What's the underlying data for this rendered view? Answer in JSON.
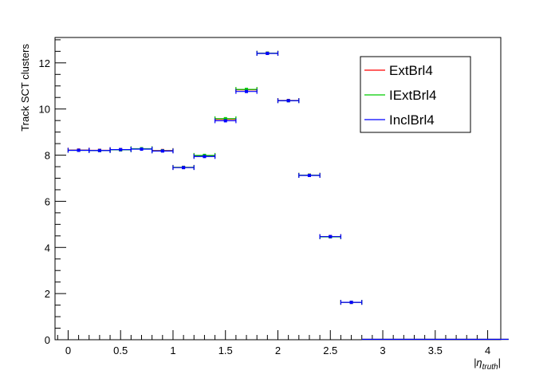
{
  "chart_data": {
    "type": "scatter",
    "title": "",
    "xlabel": "|η_truth|",
    "ylabel": "Track SCT clusters",
    "xlim": [
      -0.125,
      4.125
    ],
    "ylim": [
      0,
      13.1
    ],
    "xticks": [
      0,
      0.5,
      1,
      1.5,
      2,
      2.5,
      3,
      3.5,
      4
    ],
    "xtick_labels": [
      "0",
      "0.5",
      "1",
      "1.5",
      "2",
      "2.5",
      "3",
      "3.5",
      "4"
    ],
    "yticks": [
      0,
      2,
      4,
      6,
      8,
      10,
      12
    ],
    "ytick_labels": [
      "0",
      "2",
      "4",
      "6",
      "8",
      "10",
      "12"
    ],
    "grid": false,
    "legend_position": "top-right",
    "bin_width": 0.2,
    "x": [
      0.1,
      0.3,
      0.5,
      0.7,
      0.9,
      1.1,
      1.3,
      1.5,
      1.7,
      1.9,
      2.1,
      2.3,
      2.5,
      2.7
    ],
    "series": [
      {
        "name": "ExtBrl4",
        "color": "#ff0000",
        "values": [
          8.22,
          8.21,
          8.24,
          8.27,
          8.2,
          7.47,
          7.97,
          9.55,
          10.83,
          12.42,
          10.37,
          7.13,
          4.47,
          1.62
        ]
      },
      {
        "name": "IExtBrl4",
        "color": "#00cc00",
        "values": [
          8.21,
          8.2,
          8.23,
          8.28,
          8.19,
          7.47,
          7.99,
          9.58,
          10.85,
          12.42,
          10.36,
          7.13,
          4.46,
          1.62
        ]
      },
      {
        "name": "InclBrl4",
        "color": "#0000ff",
        "values": [
          8.21,
          8.2,
          8.24,
          8.26,
          8.18,
          7.46,
          7.94,
          9.49,
          10.76,
          12.41,
          10.36,
          7.12,
          4.47,
          1.62
        ]
      }
    ]
  }
}
